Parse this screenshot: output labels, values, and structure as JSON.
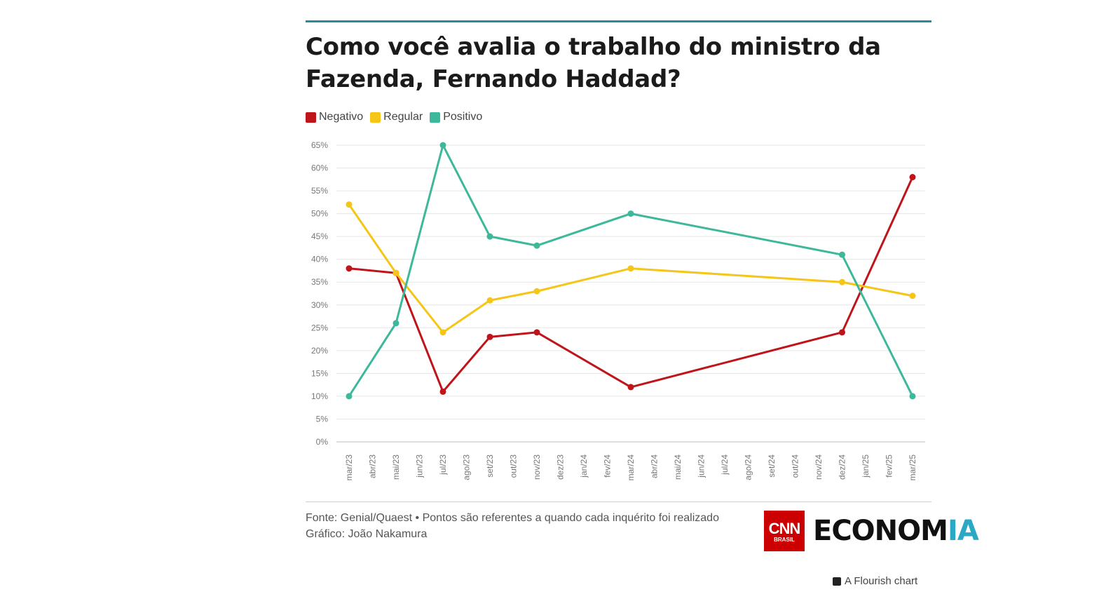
{
  "title": "Como você avalia o trabalho do ministro da Fazenda, Fernando Haddad?",
  "source_line1": "Fonte: Genial/Quaest • Pontos são referentes a quando cada inquérito foi realizado",
  "source_line2": "Gráfico: João Nakamura",
  "logo": {
    "cnn": "CNN",
    "cnn_sub": "BRASIL",
    "economia_main": "ECONOM",
    "economia_accent": "IA"
  },
  "flourish_credit": "A Flourish chart",
  "colors": {
    "negativo": "#c0141b",
    "regular": "#f5c518",
    "positivo": "#3db89a",
    "accent": "#2a8a9a"
  },
  "chart_data": {
    "type": "line",
    "title": "Como você avalia o trabalho do ministro da Fazenda, Fernando Haddad?",
    "xlabel": "",
    "ylabel": "",
    "ylim": [
      0,
      65
    ],
    "y_ticks": [
      "0%",
      "5%",
      "10%",
      "15%",
      "20%",
      "25%",
      "30%",
      "35%",
      "40%",
      "45%",
      "50%",
      "55%",
      "60%",
      "65%"
    ],
    "categories": [
      "mar/23",
      "abr/23",
      "mai/23",
      "jun/23",
      "jul/23",
      "ago/23",
      "set/23",
      "out/23",
      "nov/23",
      "dez/23",
      "jan/24",
      "fev/24",
      "mar/24",
      "abr/24",
      "mai/24",
      "jun/24",
      "jul/24",
      "ago/24",
      "set/24",
      "out/24",
      "nov/24",
      "dez/24",
      "jan/25",
      "fev/25",
      "mar/25"
    ],
    "legend_position": "top-left",
    "grid": true,
    "series": [
      {
        "name": "Negativo",
        "color": "#c0141b",
        "points": [
          [
            "mar/23",
            38
          ],
          [
            "mai/23",
            37
          ],
          [
            "jul/23",
            11
          ],
          [
            "set/23",
            23
          ],
          [
            "nov/23",
            24
          ],
          [
            "mar/24",
            12
          ],
          [
            "dez/24",
            24
          ],
          [
            "mar/25",
            58
          ]
        ]
      },
      {
        "name": "Regular",
        "color": "#f5c518",
        "points": [
          [
            "mar/23",
            52
          ],
          [
            "mai/23",
            37
          ],
          [
            "jul/23",
            24
          ],
          [
            "set/23",
            31
          ],
          [
            "nov/23",
            33
          ],
          [
            "mar/24",
            38
          ],
          [
            "dez/24",
            35
          ],
          [
            "mar/25",
            32
          ]
        ]
      },
      {
        "name": "Positivo",
        "color": "#3db89a",
        "points": [
          [
            "mar/23",
            10
          ],
          [
            "mai/23",
            26
          ],
          [
            "jul/23",
            65
          ],
          [
            "set/23",
            45
          ],
          [
            "nov/23",
            43
          ],
          [
            "mar/24",
            50
          ],
          [
            "dez/24",
            41
          ],
          [
            "mar/25",
            10
          ]
        ]
      }
    ]
  }
}
